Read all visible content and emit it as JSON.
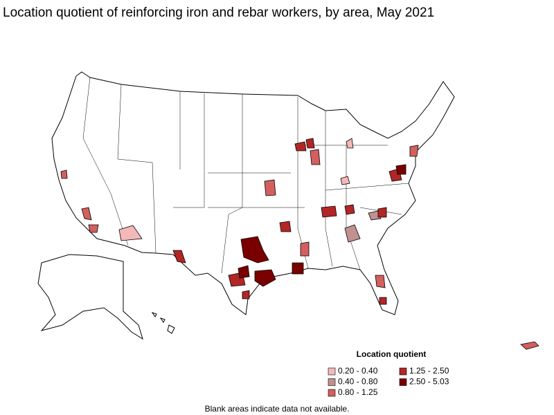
{
  "title": "Location quotient of reinforcing iron and rebar workers, by area, May 2021",
  "legend": {
    "title": "Location quotient",
    "items": [
      {
        "label": "0.20 - 0.40",
        "color": "#f5b8b8"
      },
      {
        "label": "0.40 - 0.80",
        "color": "#c29090"
      },
      {
        "label": "0.80 - 1.25",
        "color": "#d35f5f"
      },
      {
        "label": "1.25 - 2.50",
        "color": "#b22626"
      },
      {
        "label": "2.50 - 5.03",
        "color": "#7a0000"
      }
    ]
  },
  "note": "Blank areas indicate data not available."
}
